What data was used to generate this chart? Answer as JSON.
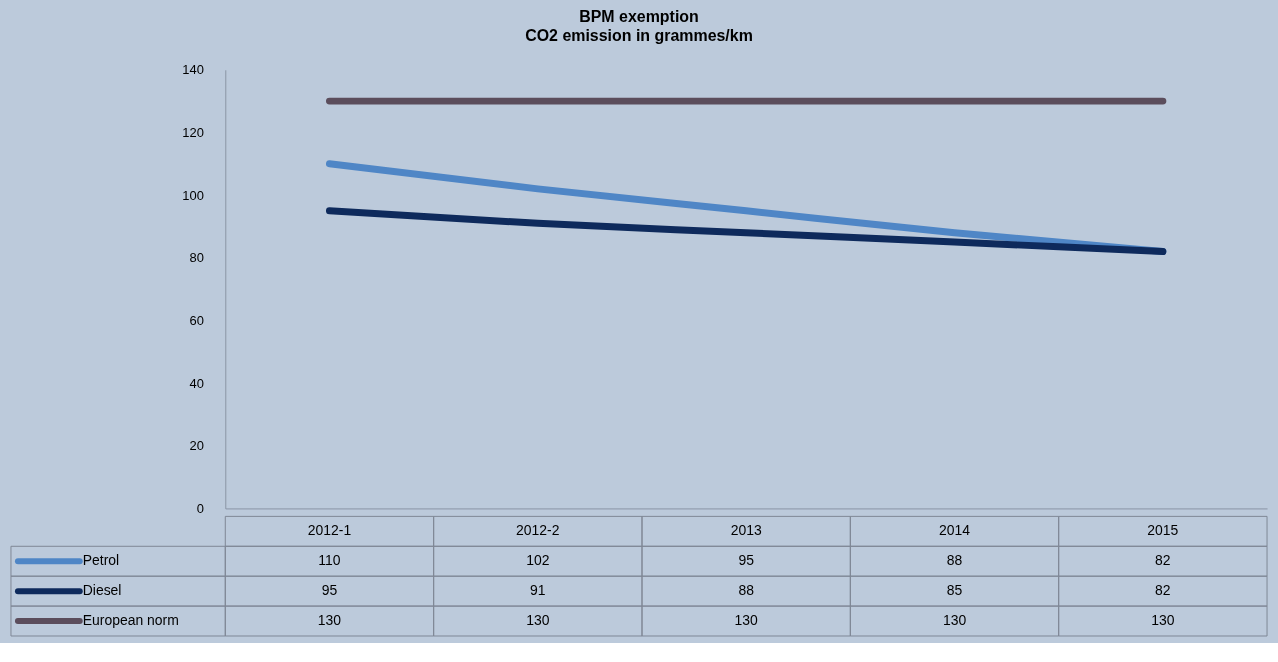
{
  "chart_data": {
    "type": "line",
    "title": "BPM exemption",
    "subtitle": "CO2 emission in grammes/km",
    "categories": [
      "2012-1",
      "2012-2",
      "2013",
      "2014",
      "2015"
    ],
    "series": [
      {
        "name": "Petrol",
        "color": "#4f86c6",
        "values": [
          110,
          102,
          95,
          88,
          82
        ]
      },
      {
        "name": "Diesel",
        "color": "#0e2a5c",
        "values": [
          95,
          91,
          88,
          85,
          82
        ]
      },
      {
        "name": "European norm",
        "color": "#5b4d5c",
        "values": [
          130,
          130,
          130,
          130,
          130
        ]
      }
    ],
    "ylim": [
      0,
      140
    ],
    "yticks": [
      0,
      20,
      40,
      60,
      80,
      100,
      120,
      140
    ],
    "grid": false,
    "legend": "bottom",
    "data_labels": true,
    "marker": "none",
    "line_style": "solid"
  }
}
